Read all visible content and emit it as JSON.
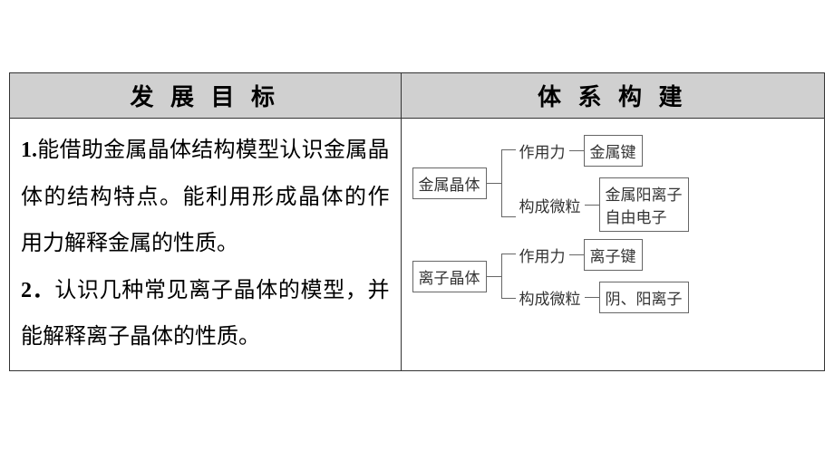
{
  "table": {
    "headers": {
      "left": "发 展 目 标",
      "right": "体 系 构 建"
    },
    "header_bg": "#d0d0d0",
    "border_color": "#333333"
  },
  "goals": {
    "item1_num": "1.",
    "item1_text": "能借助金属晶体结构模型认识金属晶体的结构特点。能利用形成晶体的作用力解释金属的性质。",
    "item2_num": "2．",
    "item2_text": "认识几种常见离子晶体的模型，并能解释离子晶体的性质。",
    "fontsize": 24,
    "line_height": 2.15
  },
  "diagram": {
    "type": "tree",
    "node_border": "#666666",
    "node_fontsize": 17,
    "trees": [
      {
        "root": "金属晶体",
        "children": [
          {
            "label": "作用力",
            "leaf": "金属键"
          },
          {
            "label": "构成微粒",
            "leaf": "金属阳离子\n自由电子"
          }
        ]
      },
      {
        "root": "离子晶体",
        "children": [
          {
            "label": "作用力",
            "leaf": "离子键"
          },
          {
            "label": "构成微粒",
            "leaf": "阴、阳离子"
          }
        ]
      }
    ]
  }
}
